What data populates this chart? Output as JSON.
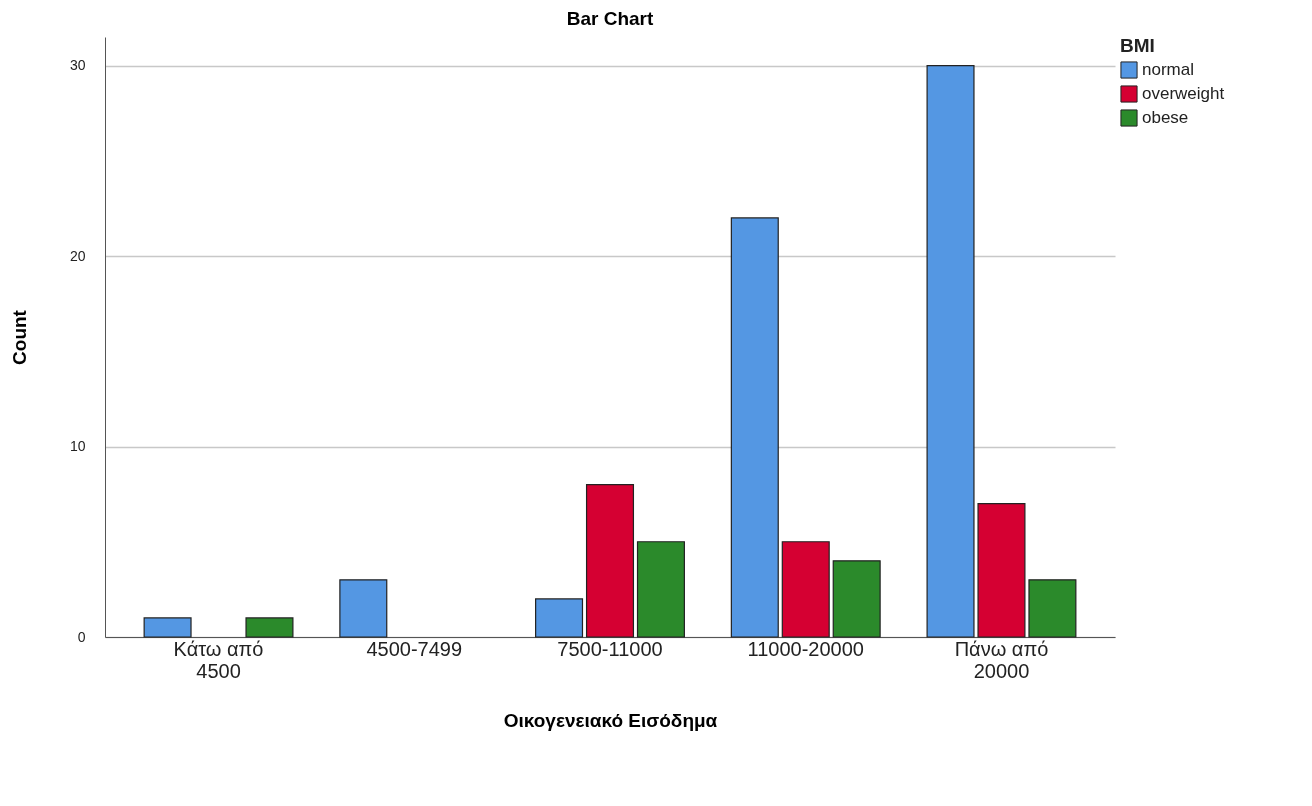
{
  "chart_data": {
    "type": "bar",
    "title": "Bar Chart",
    "xlabel": "Οικογενειακό Εισόδημα",
    "ylabel": "Count",
    "legend_title": "BMI",
    "categories": [
      "Κάτω από 4500",
      "4500-7499",
      "7500-11000",
      "11000-20000",
      "Πάνω από 20000"
    ],
    "series": [
      {
        "name": "normal",
        "color": "#5497e3",
        "values": [
          1,
          3,
          2,
          22,
          30
        ]
      },
      {
        "name": "overweight",
        "color": "#d50032",
        "values": [
          null,
          null,
          8,
          5,
          7
        ]
      },
      {
        "name": "obese",
        "color": "#2b8a2b",
        "values": [
          1,
          null,
          5,
          4,
          3
        ]
      }
    ],
    "ylim": [
      0,
      31.5
    ],
    "yticks": [
      0,
      10,
      20,
      30
    ],
    "grid": "y",
    "legend": "top right"
  }
}
